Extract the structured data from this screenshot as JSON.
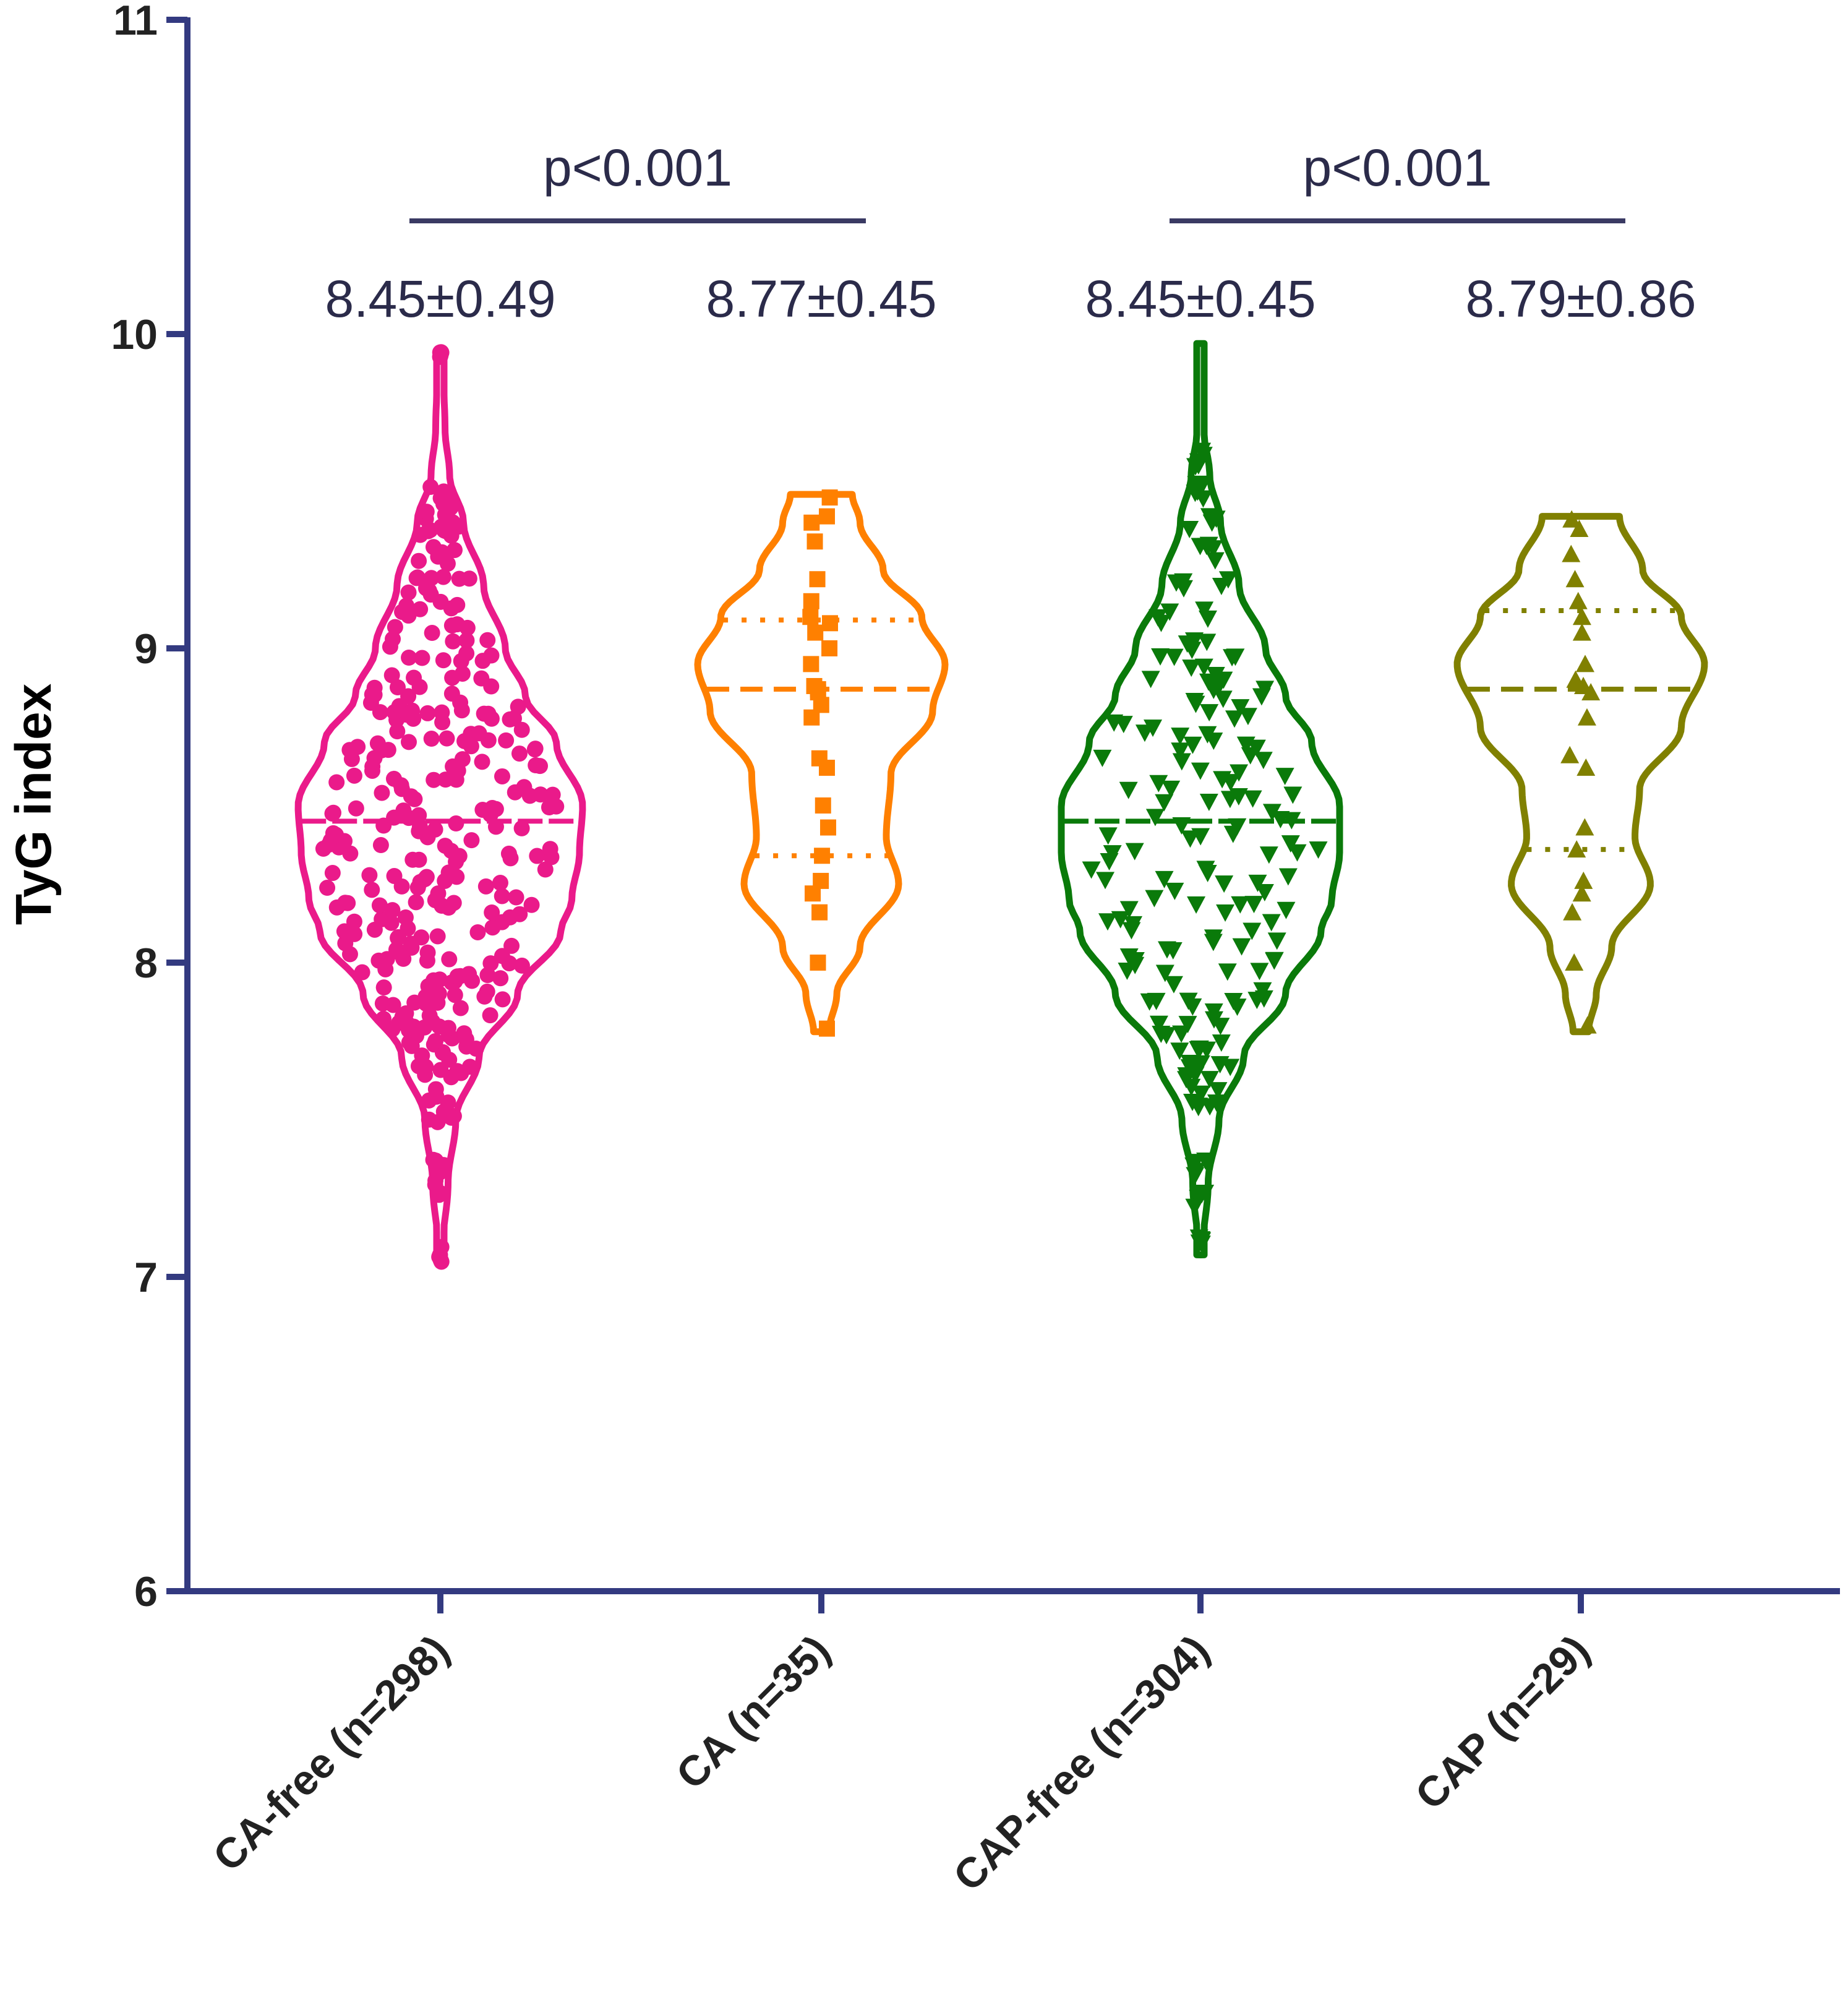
{
  "chart_data": {
    "type": "violin",
    "ylabel": "TyG index",
    "ylim": [
      6,
      11
    ],
    "yticks": [
      "6",
      "7",
      "8",
      "9",
      "10",
      "11"
    ],
    "axis_color": "#333a80",
    "groups": [
      {
        "label": "CA-free (n=298)",
        "n": 298,
        "color": "#ea1a8a",
        "marker": "circle",
        "stat": "8.45±0.49",
        "min": 7.07,
        "max": 9.95,
        "median": 8.45,
        "q1": 8.45,
        "q3": 8.45,
        "density": [
          [
            7.07,
            0.01
          ],
          [
            7.3,
            0.05
          ],
          [
            7.5,
            0.1
          ],
          [
            7.7,
            0.25
          ],
          [
            7.9,
            0.5
          ],
          [
            8.1,
            0.78
          ],
          [
            8.2,
            0.85
          ],
          [
            8.35,
            0.9
          ],
          [
            8.5,
            0.92
          ],
          [
            8.7,
            0.75
          ],
          [
            8.85,
            0.55
          ],
          [
            9.0,
            0.42
          ],
          [
            9.2,
            0.28
          ],
          [
            9.4,
            0.15
          ],
          [
            9.55,
            0.06
          ],
          [
            9.7,
            0.03
          ],
          [
            9.95,
            0.01
          ]
        ],
        "points": [
          7.07,
          7.28,
          7.35,
          7.52,
          7.58,
          7.63,
          7.68,
          7.72,
          7.75,
          7.78,
          7.8,
          7.82,
          7.85,
          7.88,
          7.9,
          7.92,
          7.95,
          7.98,
          8.0,
          8.02,
          8.05,
          8.08,
          8.1,
          8.12,
          8.15,
          8.18,
          8.2,
          8.22,
          8.25,
          8.28,
          8.3,
          8.32,
          8.35,
          8.38,
          8.4,
          8.42,
          8.45,
          8.48,
          8.5,
          8.52,
          8.55,
          8.58,
          8.6,
          8.62,
          8.65,
          8.68,
          8.7,
          8.72,
          8.75,
          8.78,
          8.8,
          8.82,
          8.85,
          8.88,
          8.9,
          8.95,
          9.0,
          9.05,
          9.1,
          9.15,
          9.2,
          9.25,
          9.3,
          9.35,
          9.4,
          9.45,
          9.5,
          9.95
        ]
      },
      {
        "label": "CA (n=35)",
        "n": 35,
        "color": "#ff8000",
        "marker": "square",
        "stat": "8.77±0.45",
        "min": 7.78,
        "max": 9.49,
        "median": 8.87,
        "q1": 8.34,
        "q3": 9.09,
        "density": [
          [
            7.78,
            0.05
          ],
          [
            7.9,
            0.1
          ],
          [
            8.05,
            0.25
          ],
          [
            8.25,
            0.5
          ],
          [
            8.4,
            0.42
          ],
          [
            8.6,
            0.45
          ],
          [
            8.8,
            0.72
          ],
          [
            8.95,
            0.8
          ],
          [
            9.1,
            0.65
          ],
          [
            9.25,
            0.4
          ],
          [
            9.4,
            0.25
          ],
          [
            9.49,
            0.2
          ]
        ],
        "points": [
          7.79,
          8.0,
          8.16,
          8.22,
          8.26,
          8.34,
          8.43,
          8.5,
          8.62,
          8.65,
          8.78,
          8.82,
          8.86,
          8.87,
          8.88,
          8.95,
          9.0,
          9.05,
          9.08,
          9.1,
          9.15,
          9.22,
          9.34,
          9.4,
          9.42,
          9.48
        ]
      },
      {
        "label": "CAP-free (n=304)",
        "n": 304,
        "color": "#0a7a0a",
        "marker": "triangle-down",
        "stat": "8.45±0.45",
        "min": 7.07,
        "max": 9.97,
        "median": 8.45,
        "q1": 8.45,
        "q3": 8.45,
        "density": [
          [
            7.07,
            0.01
          ],
          [
            7.3,
            0.05
          ],
          [
            7.5,
            0.12
          ],
          [
            7.7,
            0.28
          ],
          [
            7.9,
            0.55
          ],
          [
            8.1,
            0.78
          ],
          [
            8.2,
            0.85
          ],
          [
            8.35,
            0.9
          ],
          [
            8.5,
            0.9
          ],
          [
            8.7,
            0.72
          ],
          [
            8.85,
            0.55
          ],
          [
            9.0,
            0.42
          ],
          [
            9.2,
            0.25
          ],
          [
            9.4,
            0.13
          ],
          [
            9.55,
            0.06
          ],
          [
            9.7,
            0.02
          ],
          [
            9.97,
            0.01
          ]
        ],
        "points": [
          7.1,
          7.25,
          7.35,
          7.55,
          7.6,
          7.65,
          7.7,
          7.75,
          7.8,
          7.85,
          7.9,
          7.95,
          8.0,
          8.05,
          8.1,
          8.15,
          8.2,
          8.25,
          8.3,
          8.35,
          8.4,
          8.45,
          8.5,
          8.55,
          8.6,
          8.65,
          8.7,
          8.75,
          8.8,
          8.85,
          8.9,
          8.95,
          9.0,
          9.1,
          9.2,
          9.3,
          9.4,
          9.5,
          9.6
        ]
      },
      {
        "label": "CAP (n=29)",
        "n": 29,
        "color": "#808000",
        "marker": "triangle-up",
        "stat": "8.79±0.86",
        "min": 7.78,
        "max": 9.42,
        "median": 8.87,
        "q1": 8.36,
        "q3": 9.12,
        "density": [
          [
            7.78,
            0.05
          ],
          [
            7.9,
            0.1
          ],
          [
            8.05,
            0.2
          ],
          [
            8.25,
            0.45
          ],
          [
            8.4,
            0.35
          ],
          [
            8.55,
            0.38
          ],
          [
            8.75,
            0.65
          ],
          [
            8.95,
            0.8
          ],
          [
            9.1,
            0.65
          ],
          [
            9.25,
            0.4
          ],
          [
            9.42,
            0.25
          ]
        ],
        "points": [
          7.8,
          8.0,
          8.16,
          8.22,
          8.26,
          8.36,
          8.43,
          8.62,
          8.66,
          8.78,
          8.86,
          8.88,
          8.9,
          8.95,
          9.05,
          9.1,
          9.15,
          9.22,
          9.3,
          9.38,
          9.41
        ]
      }
    ],
    "comparisons": [
      {
        "groups": [
          0,
          1
        ],
        "label": "p<0.001"
      },
      {
        "groups": [
          2,
          3
        ],
        "label": "p<0.001"
      }
    ]
  }
}
